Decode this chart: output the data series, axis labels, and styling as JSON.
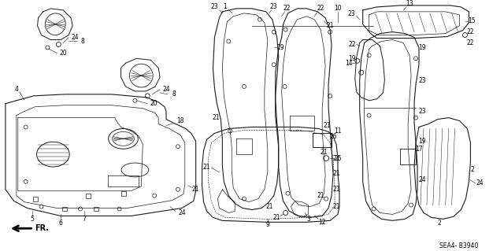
{
  "background_color": "#ffffff",
  "line_color": "#1a1a1a",
  "fig_width": 6.4,
  "fig_height": 3.19,
  "dpi": 100,
  "diagram_code": "SEA4- B3940"
}
